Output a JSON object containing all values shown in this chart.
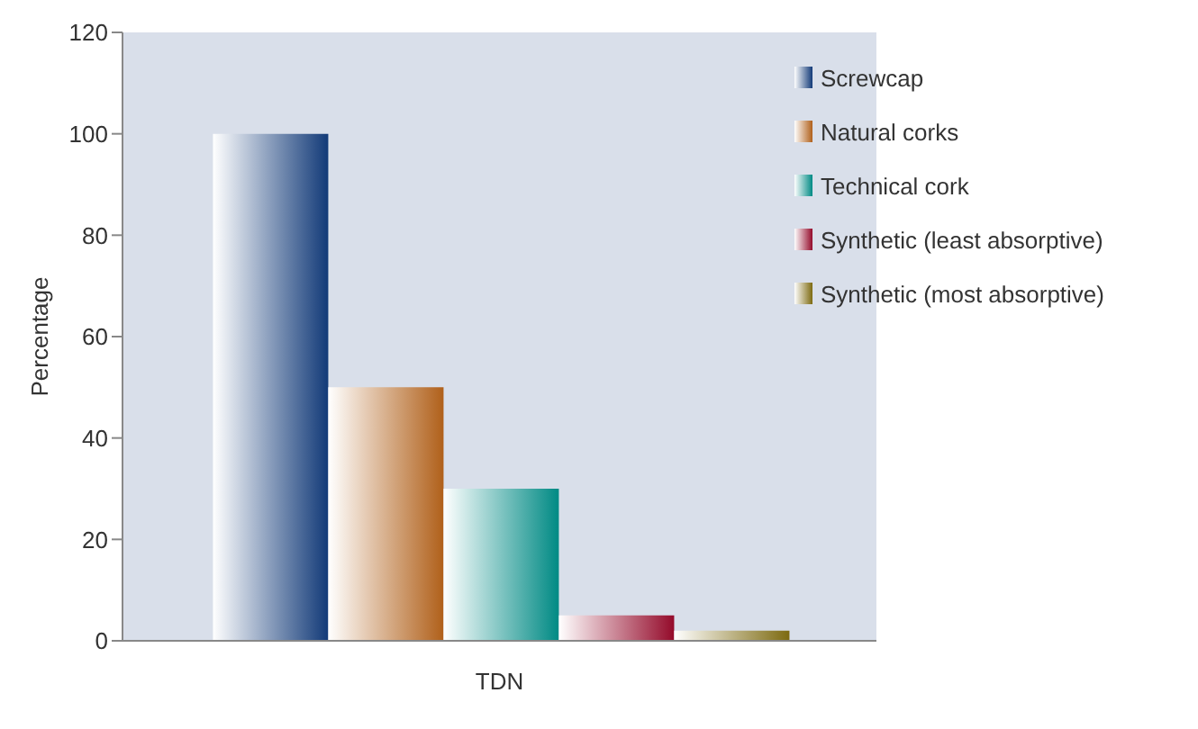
{
  "chart_data": {
    "type": "bar",
    "categories": [
      "TDN"
    ],
    "ylabel": "Percentage",
    "series": [
      {
        "name": "Screwcap",
        "color": "#123a78",
        "values": [
          100
        ]
      },
      {
        "name": "Natural corks",
        "color": "#b0601a",
        "values": [
          50
        ]
      },
      {
        "name": "Technical cork",
        "color": "#008a84",
        "values": [
          30
        ]
      },
      {
        "name": "Synthetic (least absorptive)",
        "color": "#940a2a",
        "values": [
          5
        ]
      },
      {
        "name": "Synthetic (most absorptive)",
        "color": "#7d6a10",
        "values": [
          2
        ]
      }
    ],
    "ylim": [
      0,
      120
    ],
    "yticks": [
      0,
      20,
      40,
      60,
      80,
      100,
      120
    ],
    "grid": false,
    "legend": "top right"
  }
}
